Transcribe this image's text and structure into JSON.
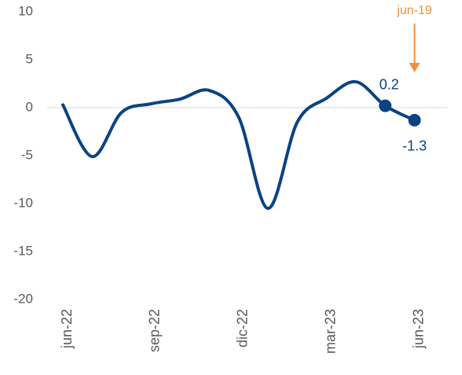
{
  "chart_data": {
    "type": "line",
    "categories": [
      "jun-22",
      null,
      null,
      "sep-22",
      null,
      null,
      "dic-22",
      null,
      null,
      "mar-23",
      null,
      null,
      "jun-23"
    ],
    "series": [
      {
        "color": "#0a4382",
        "values": [
          0.3,
          -5.1,
          -0.5,
          0.4,
          0.9,
          1.8,
          -1.0,
          -10.5,
          -1.5,
          1.0,
          2.7,
          0.2,
          -1.3
        ]
      }
    ],
    "ylim": [
      -20,
      10
    ],
    "yticks": [
      10,
      5,
      0,
      -5,
      -10,
      -15,
      -20
    ],
    "grid": false,
    "zero_line": true,
    "annotation": {
      "text": "jun-19",
      "index": 12,
      "color": "#f28f3b"
    },
    "marked_points": [
      11,
      12
    ]
  }
}
